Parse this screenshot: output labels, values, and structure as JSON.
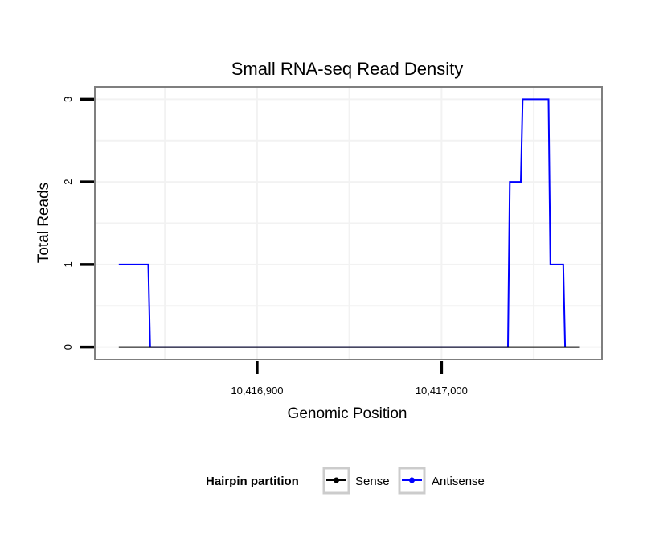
{
  "chart_data": {
    "type": "line",
    "title": "Small RNA-seq Read Density",
    "xlabel": "Genomic Position",
    "ylabel": "Total Reads",
    "xlim": [
      10416812,
      10417087
    ],
    "ylim": [
      -0.15,
      3.15
    ],
    "x_ticks": [
      {
        "value": 10416900,
        "label": "10,416,900"
      },
      {
        "value": 10417000,
        "label": "10,417,000"
      }
    ],
    "y_ticks": [
      {
        "value": 0,
        "label": "0"
      },
      {
        "value": 1,
        "label": "1"
      },
      {
        "value": 2,
        "label": "2"
      },
      {
        "value": 3,
        "label": "3"
      }
    ],
    "grid": true,
    "legend": {
      "title": "Hairpin partition",
      "position": "bottom",
      "entries": [
        {
          "name": "Sense",
          "color": "#000000"
        },
        {
          "name": "Antisense",
          "color": "#0000ff"
        }
      ]
    },
    "series": [
      {
        "name": "Sense",
        "color": "#000000",
        "x": [
          10416825,
          10417075
        ],
        "y": [
          0,
          0
        ]
      },
      {
        "name": "Antisense",
        "color": "#0000ff",
        "x": [
          10416825,
          10416841,
          10416842,
          10417036,
          10417037,
          10417043,
          10417044,
          10417058,
          10417059,
          10417066,
          10417067
        ],
        "y": [
          1,
          1,
          0,
          0,
          2,
          2,
          3,
          3,
          1,
          1,
          0
        ]
      }
    ]
  }
}
